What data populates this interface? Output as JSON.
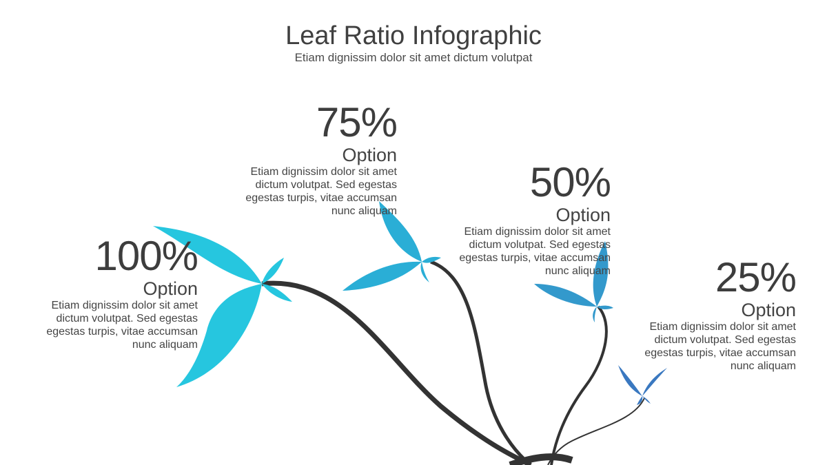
{
  "header": {
    "title": "Leaf Ratio Infographic",
    "subtitle": "Etiam dignissim dolor sit amet dictum volutpat"
  },
  "items": [
    {
      "percent": "100%",
      "label": "Option",
      "text": "Etiam dignissim dolor sit amet dictum volutpat. Sed egestas egestas turpis, vitae accumsan nunc aliquam",
      "color": "#26c6df"
    },
    {
      "percent": "75%",
      "label": "Option",
      "text": "Etiam dignissim dolor sit amet dictum volutpat. Sed egestas egestas turpis, vitae accumsan nunc aliquam",
      "color": "#2aaed6"
    },
    {
      "percent": "50%",
      "label": "Option",
      "text": "Etiam dignissim dolor sit amet dictum volutpat. Sed egestas egestas turpis, vitae accumsan nunc aliquam",
      "color": "#3399cc"
    },
    {
      "percent": "25%",
      "label": "Option",
      "text": "Etiam dignissim dolor sit amet dictum volutpat. Sed egestas egestas turpis, vitae accumsan nunc aliquam",
      "color": "#3a78c0"
    }
  ],
  "stem_color": "#333333"
}
